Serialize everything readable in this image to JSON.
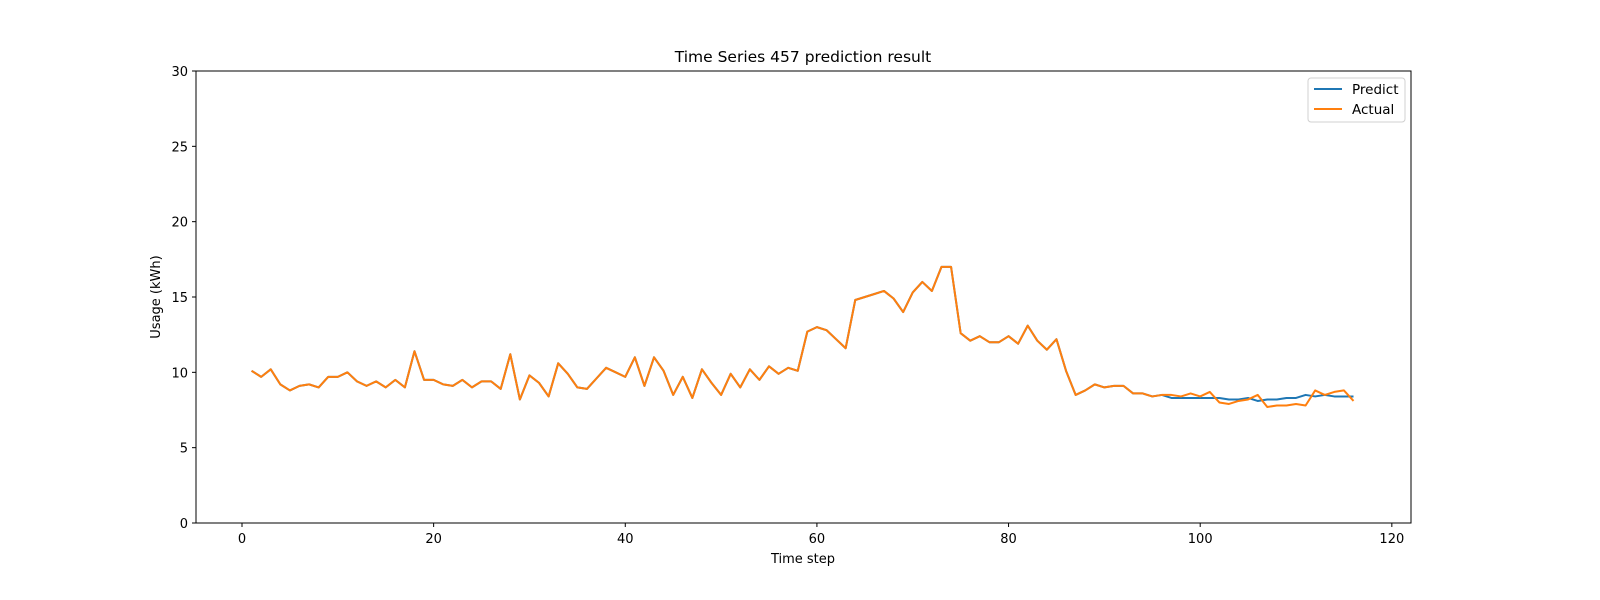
{
  "chart_data": {
    "type": "line",
    "title": "Time Series 457 prediction result",
    "xlabel": "Time step",
    "ylabel": "Usage (kWh)",
    "xlim": [
      -4.8,
      122
    ],
    "ylim": [
      0,
      30
    ],
    "xticks": [
      0,
      20,
      40,
      60,
      80,
      100,
      120
    ],
    "yticks": [
      0,
      5,
      10,
      15,
      20,
      25,
      30
    ],
    "grid": false,
    "legend_position": "top-right",
    "x": [
      1,
      2,
      3,
      4,
      5,
      6,
      7,
      8,
      9,
      10,
      11,
      12,
      13,
      14,
      15,
      16,
      17,
      18,
      19,
      20,
      21,
      22,
      23,
      24,
      25,
      26,
      27,
      28,
      29,
      30,
      31,
      32,
      33,
      34,
      35,
      36,
      37,
      38,
      39,
      40,
      41,
      42,
      43,
      44,
      45,
      46,
      47,
      48,
      49,
      50,
      51,
      52,
      53,
      54,
      55,
      56,
      57,
      58,
      59,
      60,
      61,
      62,
      63,
      64,
      65,
      66,
      67,
      68,
      69,
      70,
      71,
      72,
      73,
      74,
      75,
      76,
      77,
      78,
      79,
      80,
      81,
      82,
      83,
      84,
      85,
      86,
      87,
      88,
      89,
      90,
      91,
      92,
      93,
      94,
      95,
      96,
      97,
      98,
      99,
      100,
      101,
      102,
      103,
      104,
      105,
      106,
      107,
      108,
      109,
      110,
      111,
      112,
      113,
      114,
      115,
      116
    ],
    "series": [
      {
        "name": "Predict",
        "color": "#1f77b4",
        "values": [
          10.1,
          9.7,
          10.2,
          9.2,
          8.8,
          9.1,
          9.2,
          9.0,
          9.7,
          9.7,
          10.0,
          9.4,
          9.1,
          9.4,
          9.0,
          9.5,
          9.0,
          11.4,
          9.5,
          9.5,
          9.2,
          9.1,
          9.5,
          9.0,
          9.4,
          9.4,
          8.9,
          11.2,
          8.2,
          9.8,
          9.3,
          8.4,
          10.6,
          9.9,
          9.0,
          8.9,
          9.6,
          10.3,
          10.0,
          9.7,
          11.0,
          9.1,
          11.0,
          10.1,
          8.5,
          9.7,
          8.3,
          10.2,
          9.3,
          8.5,
          9.9,
          9.0,
          10.2,
          9.5,
          10.4,
          9.9,
          10.3,
          10.1,
          12.7,
          13.0,
          12.8,
          12.2,
          11.6,
          14.8,
          15.0,
          15.2,
          15.4,
          14.9,
          14.0,
          15.3,
          16.0,
          15.4,
          17.0,
          17.0,
          12.6,
          12.1,
          12.4,
          12.0,
          12.0,
          12.4,
          11.9,
          13.1,
          12.1,
          11.5,
          12.2,
          10.1,
          8.5,
          8.8,
          9.2,
          9.0,
          9.1,
          9.1,
          8.6,
          8.6,
          8.4,
          8.5,
          8.3,
          8.3,
          8.3,
          8.3,
          8.3,
          8.3,
          8.2,
          8.2,
          8.3,
          8.1,
          8.2,
          8.2,
          8.3,
          8.3,
          8.5,
          8.4,
          8.5,
          8.4,
          8.4,
          8.4
        ]
      },
      {
        "name": "Actual",
        "color": "#ff7f0e",
        "values": [
          10.1,
          9.7,
          10.2,
          9.2,
          8.8,
          9.1,
          9.2,
          9.0,
          9.7,
          9.7,
          10.0,
          9.4,
          9.1,
          9.4,
          9.0,
          9.5,
          9.0,
          11.4,
          9.5,
          9.5,
          9.2,
          9.1,
          9.5,
          9.0,
          9.4,
          9.4,
          8.9,
          11.2,
          8.2,
          9.8,
          9.3,
          8.4,
          10.6,
          9.9,
          9.0,
          8.9,
          9.6,
          10.3,
          10.0,
          9.7,
          11.0,
          9.1,
          11.0,
          10.1,
          8.5,
          9.7,
          8.3,
          10.2,
          9.3,
          8.5,
          9.9,
          9.0,
          10.2,
          9.5,
          10.4,
          9.9,
          10.3,
          10.1,
          12.7,
          13.0,
          12.8,
          12.2,
          11.6,
          14.8,
          15.0,
          15.2,
          15.4,
          14.9,
          14.0,
          15.3,
          16.0,
          15.4,
          17.0,
          17.0,
          12.6,
          12.1,
          12.4,
          12.0,
          12.0,
          12.4,
          11.9,
          13.1,
          12.1,
          11.5,
          12.2,
          10.1,
          8.5,
          8.8,
          9.2,
          9.0,
          9.1,
          9.1,
          8.6,
          8.6,
          8.4,
          8.5,
          8.5,
          8.4,
          8.6,
          8.4,
          8.7,
          8.0,
          7.9,
          8.1,
          8.2,
          8.5,
          7.7,
          7.8,
          7.8,
          7.9,
          7.8,
          8.8,
          8.5,
          8.7,
          8.8,
          8.1
        ]
      }
    ]
  }
}
